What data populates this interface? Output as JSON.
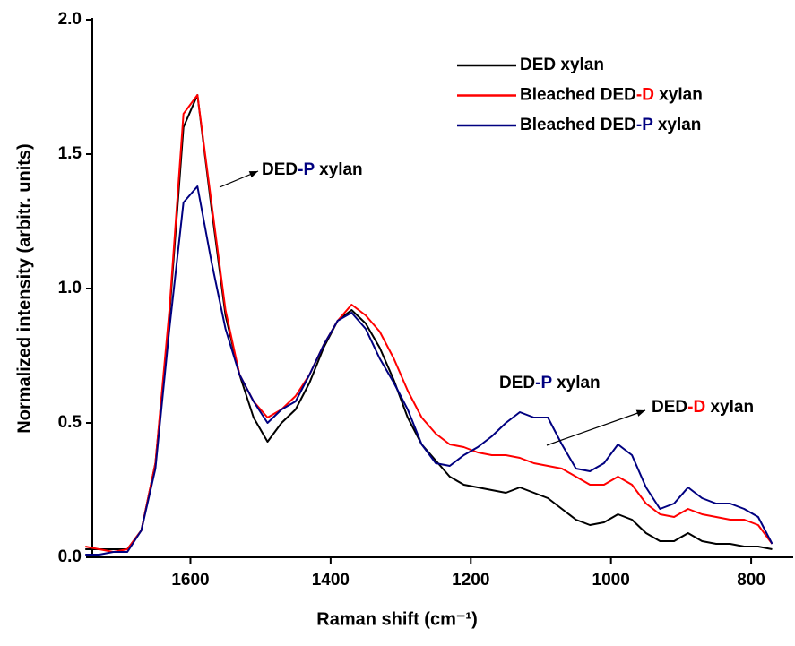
{
  "chart_data": {
    "type": "line",
    "x_label": "Raman shift (cm⁻¹)",
    "y_label": "Normalized intensity (arbitr. units)",
    "x": [
      1750,
      1730,
      1710,
      1690,
      1670,
      1650,
      1630,
      1610,
      1590,
      1570,
      1550,
      1530,
      1510,
      1490,
      1470,
      1450,
      1430,
      1410,
      1390,
      1370,
      1350,
      1330,
      1310,
      1290,
      1270,
      1250,
      1230,
      1210,
      1190,
      1170,
      1150,
      1130,
      1110,
      1090,
      1070,
      1050,
      1030,
      1010,
      990,
      970,
      950,
      930,
      910,
      890,
      870,
      850,
      830,
      810,
      790,
      770
    ],
    "series": [
      {
        "name": "DED xylan",
        "color": "#000000",
        "values": [
          0.03,
          0.03,
          0.03,
          0.03,
          0.1,
          0.35,
          0.9,
          1.6,
          1.72,
          1.3,
          0.9,
          0.68,
          0.52,
          0.43,
          0.5,
          0.55,
          0.65,
          0.78,
          0.88,
          0.92,
          0.87,
          0.78,
          0.66,
          0.52,
          0.42,
          0.36,
          0.3,
          0.27,
          0.26,
          0.25,
          0.24,
          0.26,
          0.24,
          0.22,
          0.18,
          0.14,
          0.12,
          0.13,
          0.16,
          0.14,
          0.09,
          0.06,
          0.06,
          0.09,
          0.06,
          0.05,
          0.05,
          0.04,
          0.04,
          0.03
        ]
      },
      {
        "name": "Bleached DED-D xylan",
        "color": "#ff0000",
        "values": [
          0.04,
          0.03,
          0.02,
          0.03,
          0.1,
          0.35,
          0.92,
          1.65,
          1.72,
          1.32,
          0.92,
          0.68,
          0.58,
          0.52,
          0.55,
          0.6,
          0.68,
          0.79,
          0.88,
          0.94,
          0.9,
          0.84,
          0.74,
          0.62,
          0.52,
          0.46,
          0.42,
          0.41,
          0.39,
          0.38,
          0.38,
          0.37,
          0.35,
          0.34,
          0.33,
          0.3,
          0.27,
          0.27,
          0.3,
          0.27,
          0.2,
          0.16,
          0.15,
          0.18,
          0.16,
          0.15,
          0.14,
          0.14,
          0.12,
          0.05
        ]
      },
      {
        "name": "Bleached DED-P xylan",
        "color": "#000080",
        "values": [
          0.01,
          0.01,
          0.02,
          0.02,
          0.1,
          0.33,
          0.85,
          1.32,
          1.38,
          1.1,
          0.85,
          0.68,
          0.58,
          0.5,
          0.55,
          0.58,
          0.68,
          0.79,
          0.88,
          0.91,
          0.85,
          0.74,
          0.65,
          0.55,
          0.42,
          0.35,
          0.34,
          0.38,
          0.41,
          0.45,
          0.5,
          0.54,
          0.52,
          0.52,
          0.42,
          0.33,
          0.32,
          0.35,
          0.42,
          0.38,
          0.26,
          0.18,
          0.2,
          0.26,
          0.22,
          0.2,
          0.2,
          0.18,
          0.15,
          0.05
        ]
      }
    ],
    "xlim": [
      1740,
      740
    ],
    "xticks": [
      1600,
      1400,
      1200,
      1000,
      800
    ],
    "ylim": [
      0,
      2
    ],
    "yticks": [
      {
        "value": 0,
        "label": "0.0"
      },
      {
        "value": 0.5,
        "label": "0.5"
      },
      {
        "value": 1,
        "label": "1.0"
      },
      {
        "value": 1.5,
        "label": "1.5"
      },
      {
        "value": 2,
        "label": "2.0"
      }
    ],
    "legend": "top-right",
    "annotations": [
      "DED-P xylan",
      "DED-P xylan",
      "DED-D xylan"
    ]
  }
}
